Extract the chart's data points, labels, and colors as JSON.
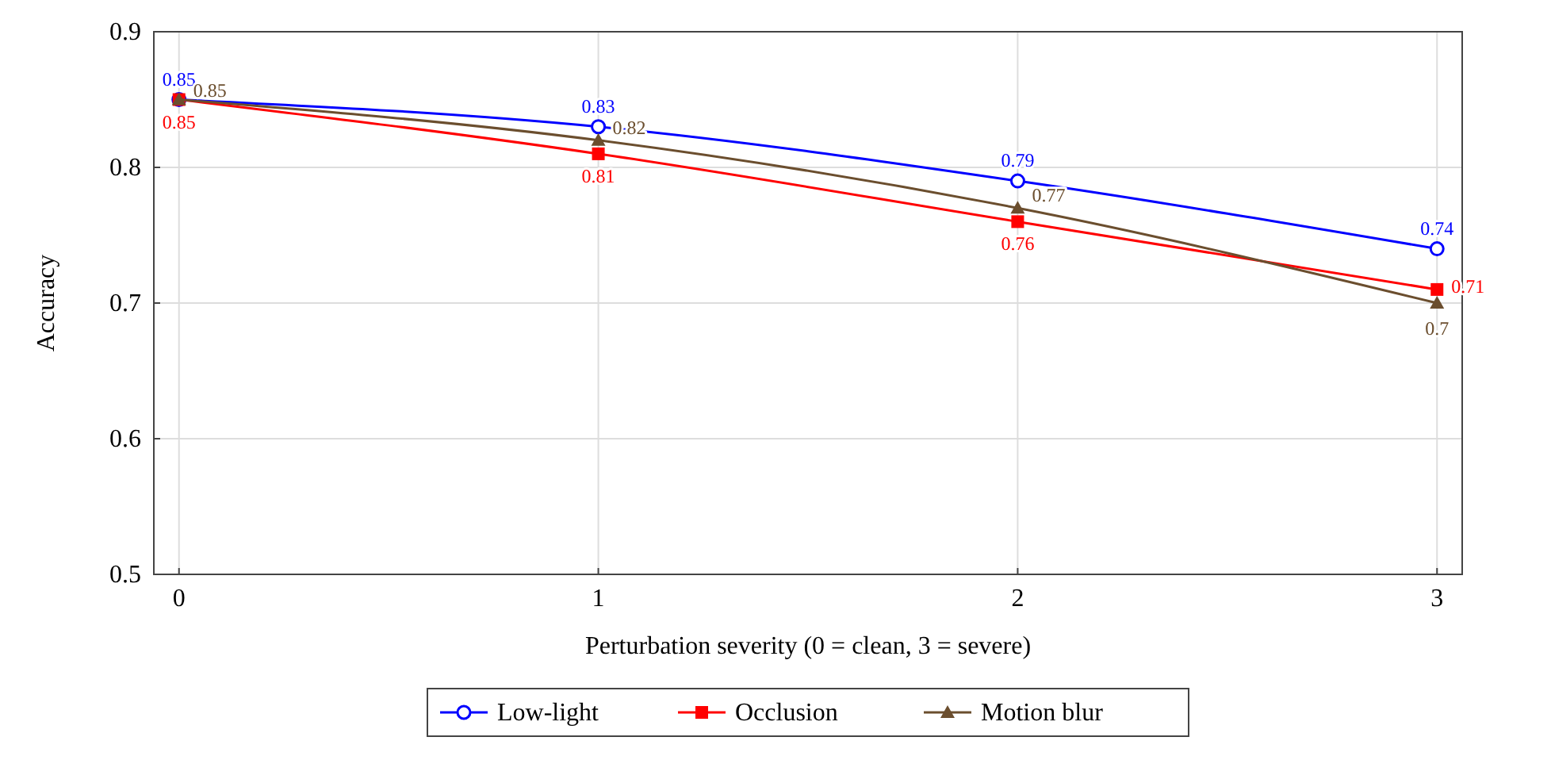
{
  "chart_data": {
    "type": "line",
    "xlabel": "Perturbation severity (0 = clean, 3 = severe)",
    "ylabel": "Accuracy",
    "x": [
      0,
      1,
      2,
      3
    ],
    "xlim": [
      -0.06,
      3.06
    ],
    "xticks": [
      0,
      1,
      2,
      3
    ],
    "ylim": [
      0.5,
      0.9
    ],
    "yticks": [
      0.5,
      0.6,
      0.7,
      0.8,
      0.9
    ],
    "grid": true,
    "legend": "bottom",
    "data_labels": true,
    "line_style": "solid",
    "series": [
      {
        "name": "Low-light",
        "color": "#0000ff",
        "marker": "circle",
        "values": [
          0.85,
          0.83,
          0.79,
          0.74
        ]
      },
      {
        "name": "Occlusion",
        "color": "#ff0000",
        "marker": "square",
        "values": [
          0.85,
          0.81,
          0.76,
          0.71
        ]
      },
      {
        "name": "Motion blur",
        "color": "#6b4e2e",
        "marker": "triangle",
        "values": [
          0.85,
          0.82,
          0.77,
          0.7
        ]
      }
    ]
  }
}
